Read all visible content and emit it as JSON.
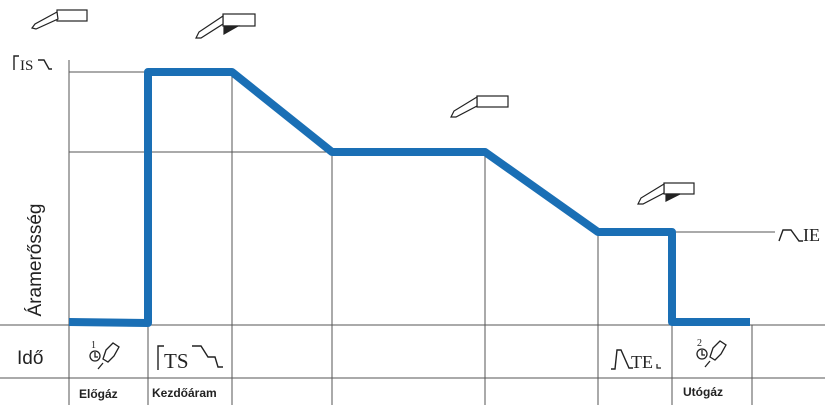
{
  "labels": {
    "y_axis": "Áramerősség",
    "time_row": "Idő",
    "phase_pre_gas": "Előgáz",
    "phase_start_current": "Kezdőáram",
    "phase_post_gas": "Utógáz"
  },
  "symbols": {
    "is": "IS",
    "ie": "IE",
    "ts": "TS",
    "te": "TE",
    "pre_gas_number": "1",
    "post_gas_number": "2"
  },
  "icons": {
    "torch": "welding-torch-icon",
    "gas_valve": "gas-valve-icon",
    "ramp": "ramp-symbol-icon"
  },
  "colors": {
    "profile": "#1a6fb5",
    "grid": "#555555",
    "ink": "#222222"
  }
}
